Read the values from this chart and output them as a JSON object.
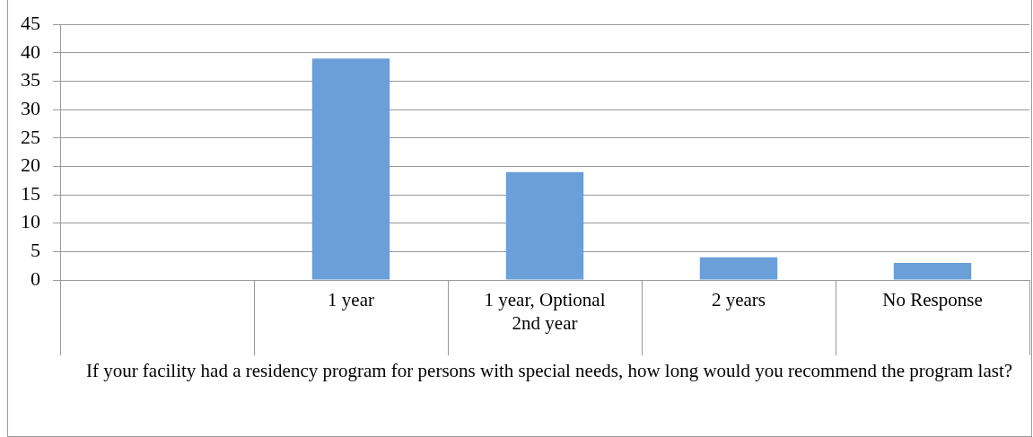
{
  "chart_data": {
    "type": "bar",
    "xlabel": "If your facility had a residency program for persons with special needs, how long would you recommend the program last?",
    "categories": [
      null,
      "1 year",
      "1 year, Optional 2nd year",
      "2 years",
      "No Response"
    ],
    "values": [
      null,
      39,
      19,
      4,
      3
    ],
    "color": "#6a9fd8",
    "ylim": [
      0,
      45
    ],
    "yticks": [
      0,
      5,
      10,
      15,
      20,
      25,
      30,
      35,
      40,
      45
    ],
    "grid": "y",
    "legend": false
  }
}
